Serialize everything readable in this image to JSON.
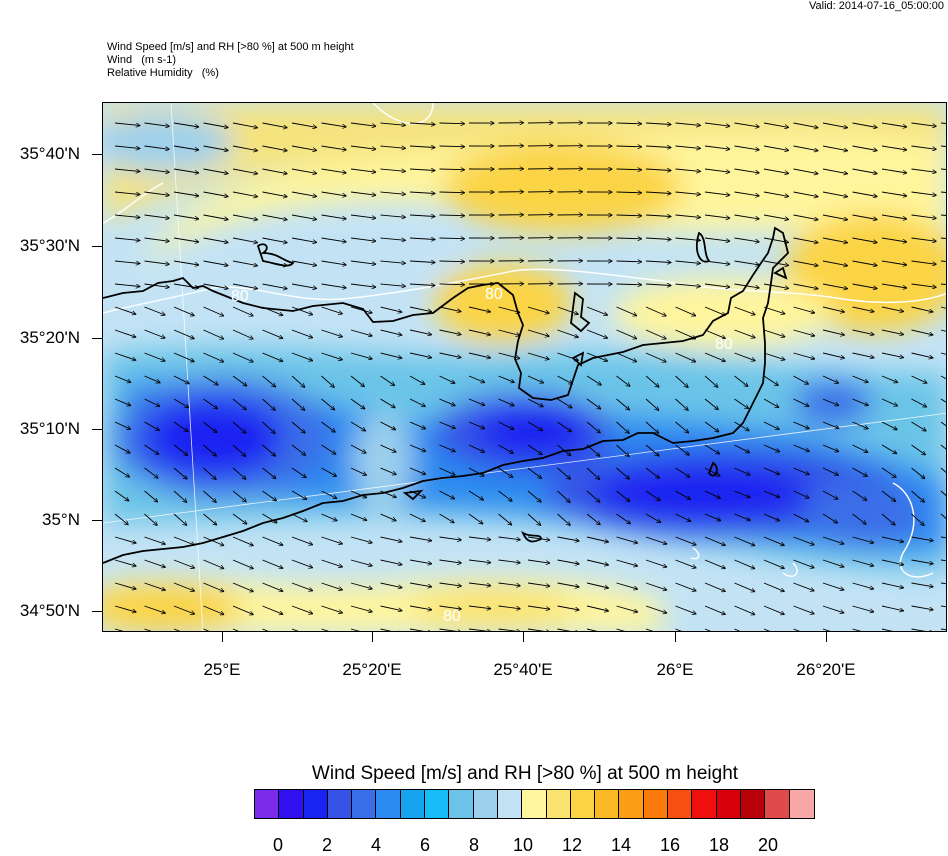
{
  "header": {
    "valid": "Valid: 2014-07-16_05:00:00",
    "line1": "Wind Speed [m/s] and RH [>80 %] at 500 m height",
    "line2": "Wind   (m s-1)",
    "line3": "Relative Humidity   (%)"
  },
  "map": {
    "lat_labels": [
      "35°40'N",
      "35°30'N",
      "35°20'N",
      "35°10'N",
      "35°N",
      "34°50'N"
    ],
    "lon_labels": [
      "25°E",
      "25°20'E",
      "25°40'E",
      "26°E",
      "26°20'E"
    ],
    "contour_labels": [
      "80",
      "80",
      "80",
      "80"
    ],
    "coast_color": "#000000",
    "contour_color": "#ffffff",
    "vector_color": "#000000"
  },
  "legend": {
    "title": "Wind Speed [m/s] and RH [>80 %] at 500 m height",
    "colors": [
      "#7b2bea",
      "#3010f0",
      "#1a24f2",
      "#3553e6",
      "#3a6ee8",
      "#2b8bf0",
      "#18a3f0",
      "#16bdf6",
      "#6bc4e8",
      "#9dd0ec",
      "#c3e3f5",
      "#fff59c",
      "#fbe370",
      "#fbd444",
      "#fbba25",
      "#fb9d15",
      "#fb7a0a",
      "#f85010",
      "#ef0f0f",
      "#d8000a",
      "#b8000a",
      "#e04a4a",
      "#f9a8a8"
    ],
    "tick_labels": [
      "0",
      "2",
      "4",
      "6",
      "8",
      "10",
      "12",
      "14",
      "16",
      "18",
      "20"
    ]
  }
}
